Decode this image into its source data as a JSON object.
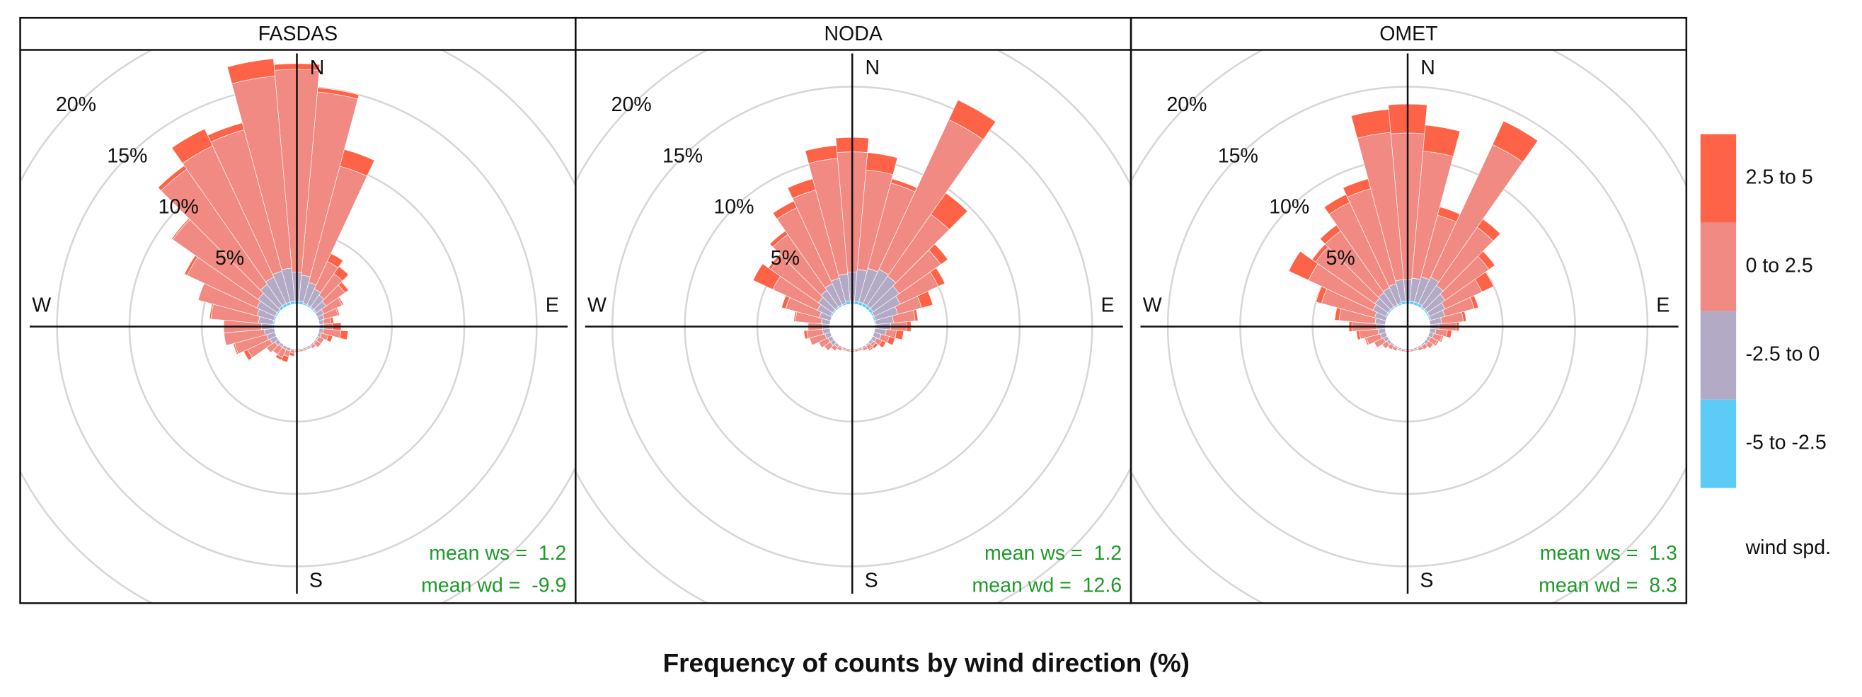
{
  "figure": {
    "title": "Frequency of counts by wind direction (%)",
    "legend_title": "wind spd."
  },
  "chart_data": [
    {
      "type": "windrose",
      "title": "FASDAS",
      "x": [
        0,
        10,
        20,
        30,
        40,
        50,
        60,
        70,
        80,
        90,
        100,
        110,
        120,
        130,
        140,
        150,
        160,
        170,
        180,
        190,
        200,
        210,
        220,
        230,
        240,
        250,
        260,
        270,
        280,
        290,
        300,
        310,
        320,
        330,
        340,
        350
      ],
      "series": [
        {
          "name": "2.5 to 5",
          "color": "#ff6347",
          "values": [
            0.4,
            0.3,
            1.2,
            0.6,
            0.6,
            0.3,
            0.1,
            0.1,
            0.2,
            0.6,
            0.5,
            0.3,
            0,
            0,
            0,
            0,
            0,
            0,
            0,
            0.2,
            0.4,
            0.2,
            0,
            0,
            0.3,
            0.1,
            0,
            0,
            0.1,
            0,
            0.2,
            0.1,
            0.3,
            1.3,
            0.5,
            1.2
          ]
        },
        {
          "name": "0 to 2.5",
          "color": "#f08a82",
          "values": [
            14.0,
            12.7,
            8.3,
            2.1,
            1.8,
            1.6,
            1.4,
            1.0,
            0.5,
            0.6,
            1.2,
            0.5,
            0.4,
            0.4,
            0.2,
            0.1,
            0.1,
            0.1,
            0.1,
            0.2,
            0.4,
            0.6,
            0.6,
            0.7,
            1.7,
            2.3,
            2.8,
            2.6,
            3.3,
            4.2,
            5.3,
            7.2,
            9.7,
            10.0,
            10.1,
            13.3
          ]
        },
        {
          "name": "-2.5 to 0",
          "color": "#b3aac6",
          "values": [
            2.0,
            1.8,
            1.5,
            1.2,
            1.0,
            0.8,
            0.5,
            0.4,
            0.3,
            0.3,
            0.3,
            0.2,
            0.1,
            0.1,
            0.1,
            0.1,
            0.1,
            0.1,
            0.1,
            0.1,
            0.2,
            0.2,
            0.2,
            0.3,
            0.5,
            0.6,
            0.7,
            0.8,
            1.0,
            1.2,
            1.4,
            1.6,
            1.8,
            2.0,
            2.2,
            2.3
          ]
        },
        {
          "name": "-5 to -2.5",
          "color": "#5ccbf5",
          "values": [
            0.2,
            0.2,
            0.1,
            0.1,
            0.1,
            0.1,
            0,
            0,
            0,
            0,
            0,
            0,
            0,
            0,
            0,
            0,
            0,
            0,
            0,
            0,
            0,
            0,
            0,
            0,
            0,
            0,
            0,
            0.1,
            0.1,
            0.1,
            0.1,
            0.1,
            0.2,
            0.2,
            0.2,
            0.2
          ]
        }
      ],
      "rlim": [
        0,
        30
      ],
      "rticks": [
        {
          "value": 5,
          "label": "5%"
        },
        {
          "value": 10,
          "label": "10%"
        },
        {
          "value": 15,
          "label": "15%"
        },
        {
          "value": 20,
          "label": "20%"
        }
      ],
      "direction_labels": [
        "N",
        "E",
        "S",
        "W"
      ],
      "annotations": [
        "mean ws =  1.2",
        "mean wd =  -9.9"
      ]
    },
    {
      "type": "windrose",
      "title": "NODA",
      "x": [
        0,
        10,
        20,
        30,
        40,
        50,
        60,
        70,
        80,
        90,
        100,
        110,
        120,
        130,
        140,
        150,
        160,
        170,
        180,
        190,
        200,
        210,
        220,
        230,
        240,
        250,
        260,
        270,
        280,
        290,
        300,
        310,
        320,
        330,
        340,
        350
      ],
      "series": [
        {
          "name": "2.5 to 5",
          "color": "#ff6347",
          "values": [
            1.0,
            1.2,
            0.3,
            1.5,
            1.8,
            0.6,
            0.5,
            0.8,
            0.2,
            0.3,
            0.5,
            0.4,
            0.3,
            0.2,
            0.1,
            0,
            0,
            0,
            0,
            0,
            0,
            0,
            0,
            0,
            0,
            0,
            0.2,
            0,
            0.1,
            0.3,
            1.5,
            0.2,
            0.3,
            0.5,
            0.8,
            0.9
          ]
        },
        {
          "name": "0 to 2.5",
          "color": "#f08a82",
          "values": [
            8.3,
            6.9,
            6.1,
            11.4,
            5.2,
            3.5,
            2.9,
            1.7,
            1.5,
            1.1,
            0.7,
            0.6,
            0.4,
            0.2,
            0.3,
            0.2,
            0.1,
            0.1,
            0.1,
            0.1,
            0.1,
            0.2,
            0.3,
            0.5,
            0.7,
            1.1,
            1.1,
            1.0,
            1.8,
            2.4,
            3.4,
            4.0,
            4.7,
            5.8,
            6.3,
            8.0
          ]
        },
        {
          "name": "-2.5 to 0",
          "color": "#b3aac6",
          "values": [
            2.0,
            2.2,
            2.4,
            2.6,
            2.5,
            2.2,
            2.0,
            1.6,
            1.2,
            1.0,
            0.8,
            0.5,
            0.3,
            0.2,
            0.1,
            0.1,
            0.1,
            0.1,
            0.1,
            0.1,
            0.1,
            0.1,
            0.2,
            0.3,
            0.3,
            0.4,
            0.5,
            0.5,
            0.6,
            0.8,
            1.0,
            1.2,
            1.4,
            1.6,
            1.8,
            1.9
          ]
        },
        {
          "name": "-5 to -2.5",
          "color": "#5ccbf5",
          "values": [
            0.2,
            0.2,
            0.2,
            0.2,
            0.2,
            0.2,
            0.1,
            0.1,
            0.1,
            0.1,
            0,
            0,
            0,
            0,
            0,
            0,
            0,
            0,
            0,
            0,
            0,
            0,
            0,
            0,
            0,
            0,
            0,
            0,
            0,
            0,
            0.1,
            0.1,
            0.1,
            0.1,
            0.1,
            0.2
          ]
        }
      ],
      "rlim": [
        0,
        30
      ],
      "rticks": [
        {
          "value": 5,
          "label": "5%"
        },
        {
          "value": 10,
          "label": "10%"
        },
        {
          "value": 15,
          "label": "15%"
        },
        {
          "value": 20,
          "label": "20%"
        }
      ],
      "direction_labels": [
        "N",
        "E",
        "S",
        "W"
      ],
      "annotations": [
        "mean ws =  1.2",
        "mean wd =  12.6"
      ]
    },
    {
      "type": "windrose",
      "title": "OMET",
      "x": [
        0,
        10,
        20,
        30,
        40,
        50,
        60,
        70,
        80,
        90,
        100,
        110,
        120,
        130,
        140,
        150,
        160,
        170,
        180,
        190,
        200,
        210,
        220,
        230,
        240,
        250,
        260,
        270,
        280,
        290,
        300,
        310,
        320,
        330,
        340,
        350
      ],
      "series": [
        {
          "name": "2.5 to 5",
          "color": "#ff6347",
          "values": [
            2.0,
            1.8,
            0.6,
            1.8,
            0.7,
            0.5,
            0.9,
            0.3,
            0.2,
            0.2,
            0.3,
            0.1,
            0.1,
            0,
            0,
            0,
            0,
            0,
            0,
            0,
            0,
            0,
            0,
            0,
            0,
            0.1,
            0.2,
            0.2,
            0.3,
            0.4,
            1.5,
            0.3,
            0.5,
            0.6,
            0.7,
            1.6
          ]
        },
        {
          "name": "0 to 2.5",
          "color": "#f08a82",
          "values": [
            10.1,
            8.8,
            4.4,
            10.1,
            4.9,
            3.7,
            2.8,
            2.1,
            1.5,
            1.2,
            0.8,
            0.6,
            0.5,
            0.4,
            0.3,
            0.2,
            0.1,
            0.1,
            0.1,
            0.1,
            0.1,
            0.2,
            0.3,
            0.4,
            0.7,
            1.0,
            1.3,
            1.7,
            2.5,
            3.8,
            4.9,
            5.0,
            5.2,
            6.5,
            6.8,
            10.2
          ]
        },
        {
          "name": "-2.5 to 0",
          "color": "#b3aac6",
          "values": [
            1.5,
            1.6,
            1.8,
            2.0,
            1.8,
            1.5,
            1.2,
            1.0,
            0.8,
            0.6,
            0.4,
            0.3,
            0.2,
            0.2,
            0.1,
            0.1,
            0.1,
            0.1,
            0.1,
            0.1,
            0.1,
            0.1,
            0.1,
            0.2,
            0.3,
            0.4,
            0.5,
            0.6,
            0.7,
            0.8,
            1.0,
            1.1,
            1.2,
            1.3,
            1.4,
            1.5
          ]
        },
        {
          "name": "-5 to -2.5",
          "color": "#5ccbf5",
          "values": [
            0.2,
            0.2,
            0.2,
            0.2,
            0.1,
            0.1,
            0.1,
            0.1,
            0,
            0,
            0,
            0,
            0,
            0,
            0,
            0,
            0,
            0,
            0,
            0,
            0,
            0,
            0,
            0,
            0,
            0,
            0,
            0,
            0,
            0,
            0.1,
            0.1,
            0.1,
            0.1,
            0.1,
            0.2
          ]
        }
      ],
      "rlim": [
        0,
        30
      ],
      "rticks": [
        {
          "value": 5,
          "label": "5%"
        },
        {
          "value": 10,
          "label": "10%"
        },
        {
          "value": 15,
          "label": "15%"
        },
        {
          "value": 20,
          "label": "20%"
        }
      ],
      "direction_labels": [
        "N",
        "E",
        "S",
        "W"
      ],
      "annotations": [
        "mean ws =  1.3",
        "mean wd =  8.3"
      ]
    }
  ]
}
